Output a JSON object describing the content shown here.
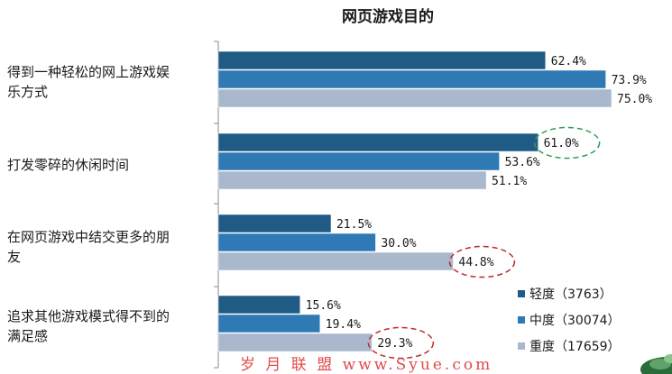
{
  "chart_data": {
    "type": "bar",
    "orientation": "horizontal",
    "title": "网页游戏目的",
    "categories": [
      [
        "得到一种轻松的网上游戏娱",
        "乐方式"
      ],
      [
        "打发零碎的休闲时间"
      ],
      [
        "在网页游戏中结交更多的朋",
        "友"
      ],
      [
        "追求其他游戏模式得不到的",
        "满足感"
      ]
    ],
    "series": [
      {
        "name": "轻度（3763）",
        "color": "#1f5b85",
        "values": [
          62.4,
          61.0,
          21.5,
          15.6
        ],
        "labels": [
          "62.4%",
          "61.0%",
          "21.5%",
          "15.6%"
        ]
      },
      {
        "name": "中度（30074）",
        "color": "#2f79b5",
        "values": [
          73.9,
          53.6,
          30.0,
          19.4
        ],
        "labels": [
          "73.9%",
          "53.6%",
          "30.0%",
          "19.4%"
        ]
      },
      {
        "name": "重度（17659）",
        "color": "#a9b8cd",
        "values": [
          75.0,
          51.1,
          44.8,
          29.3
        ],
        "labels": [
          "75.0%",
          "51.1%",
          "44.8%",
          "29.3%"
        ]
      }
    ],
    "xlim": [
      0,
      100
    ],
    "legend_position": "bottom-right",
    "grid": false,
    "highlights": [
      {
        "series": 0,
        "category": 1,
        "color": "#2e9e5a"
      },
      {
        "series": 2,
        "category": 2,
        "color": "#c22a2a"
      },
      {
        "series": 2,
        "category": 3,
        "color": "#c22a2a"
      }
    ]
  },
  "watermark": "岁 月 联 盟  www.Syue.com"
}
